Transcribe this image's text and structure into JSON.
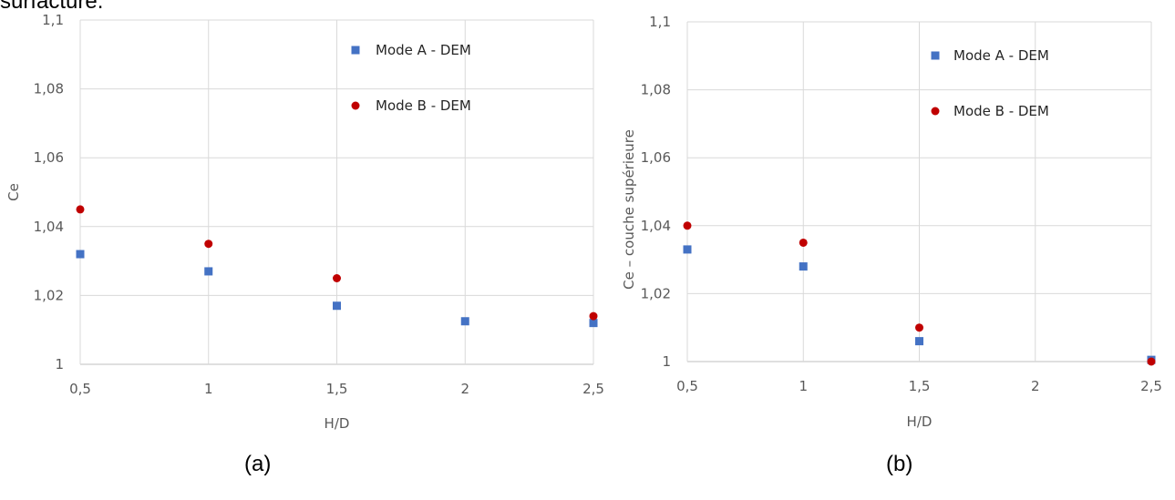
{
  "header_text": "surfacture.",
  "captions": [
    "(a)",
    "(b)"
  ],
  "colors": {
    "mode_a": "#4472c4",
    "mode_b": "#c00000",
    "grid": "#d9d9d9",
    "text": "#595959"
  },
  "chart_data": [
    {
      "type": "scatter",
      "title": "",
      "xlabel": "H/D",
      "ylabel": "Ce",
      "xlim": [
        0.5,
        2.5
      ],
      "ylim": [
        1.0,
        1.1
      ],
      "xticks": [
        {
          "value": 0.5,
          "label": "0,5"
        },
        {
          "value": 1.0,
          "label": "1"
        },
        {
          "value": 1.5,
          "label": "1,5"
        },
        {
          "value": 2.0,
          "label": "2"
        },
        {
          "value": 2.5,
          "label": "2,5"
        }
      ],
      "yticks": [
        {
          "value": 1.0,
          "label": "1"
        },
        {
          "value": 1.02,
          "label": "1,02"
        },
        {
          "value": 1.04,
          "label": "1,04"
        },
        {
          "value": 1.06,
          "label": "1,06"
        },
        {
          "value": 1.08,
          "label": "1,08"
        },
        {
          "value": 1.1,
          "label": "1,1"
        }
      ],
      "grid": "vertical and horizontal",
      "legend_position": "top-center",
      "series": [
        {
          "name": "Mode A - DEM",
          "marker": "square",
          "color": "#4472c4",
          "x": [
            0.5,
            1.0,
            1.5,
            2.0,
            2.5
          ],
          "y": [
            1.032,
            1.027,
            1.017,
            1.0125,
            1.012
          ]
        },
        {
          "name": "Mode B - DEM",
          "marker": "circle",
          "color": "#c00000",
          "x": [
            0.5,
            1.0,
            1.5,
            2.5
          ],
          "y": [
            1.045,
            1.035,
            1.025,
            1.014
          ]
        }
      ]
    },
    {
      "type": "scatter",
      "title": "",
      "xlabel": "H/D",
      "ylabel": "Ce – couche supérieure",
      "xlim": [
        0.5,
        2.5
      ],
      "ylim": [
        1.0,
        1.1
      ],
      "xticks": [
        {
          "value": 0.5,
          "label": "0,5"
        },
        {
          "value": 1.0,
          "label": "1"
        },
        {
          "value": 1.5,
          "label": "1,5"
        },
        {
          "value": 2.0,
          "label": "2"
        },
        {
          "value": 2.5,
          "label": "2,5"
        }
      ],
      "yticks": [
        {
          "value": 1.0,
          "label": "1"
        },
        {
          "value": 1.02,
          "label": "1,02"
        },
        {
          "value": 1.04,
          "label": "1,04"
        },
        {
          "value": 1.06,
          "label": "1,06"
        },
        {
          "value": 1.08,
          "label": "1,08"
        },
        {
          "value": 1.1,
          "label": "1,1"
        }
      ],
      "grid": "vertical and horizontal",
      "legend_position": "top-center",
      "series": [
        {
          "name": "Mode A - DEM",
          "marker": "square",
          "color": "#4472c4",
          "x": [
            0.5,
            1.0,
            1.5,
            2.5
          ],
          "y": [
            1.033,
            1.028,
            1.006,
            1.0005
          ]
        },
        {
          "name": "Mode B - DEM",
          "marker": "circle",
          "color": "#c00000",
          "x": [
            0.5,
            1.0,
            1.5,
            2.5
          ],
          "y": [
            1.04,
            1.035,
            1.01,
            1.0
          ]
        }
      ]
    }
  ]
}
